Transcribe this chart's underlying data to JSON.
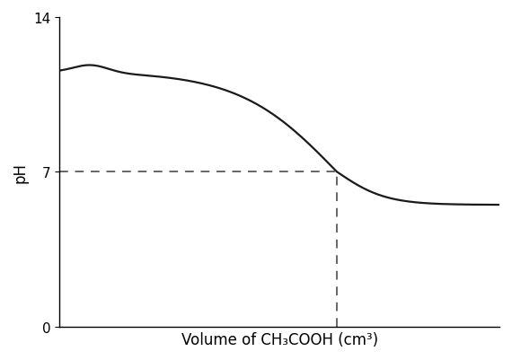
{
  "xlabel": "Volume of CH₃COOH (cm³)",
  "ylabel": "pH",
  "yticks": [
    0,
    7,
    14
  ],
  "xlim": [
    0,
    100
  ],
  "ylim": [
    0,
    14
  ],
  "curve_color": "#1a1a1a",
  "dashed_color": "#666666",
  "equivalence_x": 63,
  "equivalence_y": 7,
  "background_color": "#ffffff",
  "curve_linewidth": 1.6,
  "dashed_linewidth": 1.4,
  "xlabel_fontsize": 12,
  "ylabel_fontsize": 12,
  "tick_fontsize": 11
}
